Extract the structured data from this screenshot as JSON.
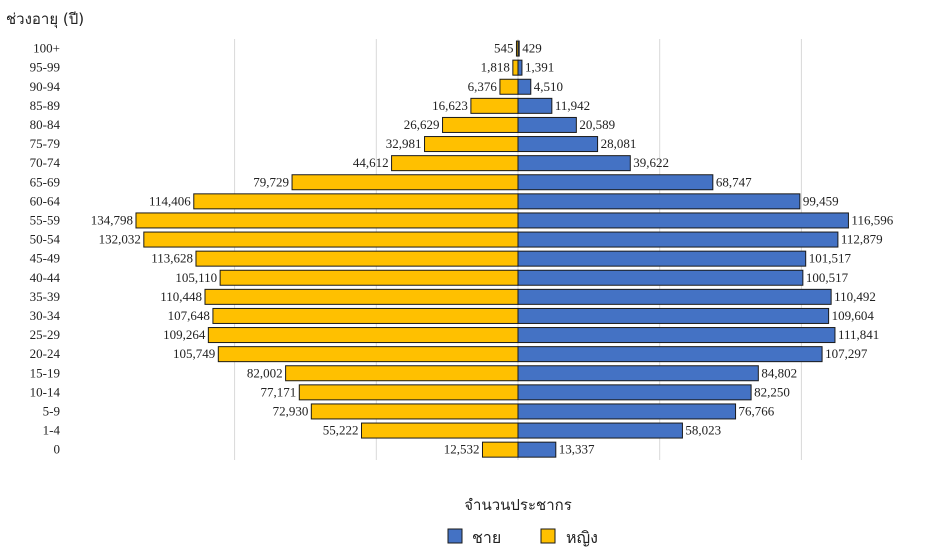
{
  "chart_data": {
    "type": "bar",
    "orientation": "horizontal-pyramid",
    "ylabel": "ช่วงอายุ (ปี)",
    "xlabel": "จำนวนประชากร",
    "categories": [
      "100+",
      "95-99",
      "90-94",
      "85-89",
      "80-84",
      "75-79",
      "70-74",
      "65-69",
      "60-64",
      "55-59",
      "50-54",
      "45-49",
      "40-44",
      "35-39",
      "30-34",
      "25-29",
      "20-24",
      "15-19",
      "10-14",
      "5-9",
      "1-4",
      "0"
    ],
    "series": [
      {
        "name": "หญิง",
        "color": "#FFC000",
        "side": "left",
        "values": [
          545,
          1818,
          6376,
          16623,
          26629,
          32981,
          44612,
          79729,
          114406,
          134798,
          132032,
          113628,
          105110,
          110448,
          107648,
          109264,
          105749,
          82002,
          77171,
          72930,
          55222,
          12532
        ],
        "labels": [
          "545",
          "1,818",
          "6,376",
          "16,623",
          "26,629",
          "32,981",
          "44,612",
          "79,729",
          "114,406",
          "134,798",
          "132,032",
          "113,628",
          "105,110",
          "110,448",
          "107,648",
          "109,264",
          "105,749",
          "82,002",
          "77,171",
          "72,930",
          "55,222",
          "12,532"
        ]
      },
      {
        "name": "ชาย",
        "color": "#4472C4",
        "side": "right",
        "values": [
          429,
          1391,
          4510,
          11942,
          20589,
          28081,
          39622,
          68747,
          99459,
          116596,
          112879,
          101517,
          100517,
          110492,
          109604,
          111841,
          107297,
          84802,
          82250,
          76766,
          58023,
          13337
        ],
        "labels": [
          "429",
          "1,391",
          "4,510",
          "11,942",
          "20,589",
          "28,081",
          "39,622",
          "68,747",
          "99,459",
          "116,596",
          "112,879",
          "101,517",
          "100,517",
          "110,492",
          "109,604",
          "111,841",
          "107,297",
          "84,802",
          "82,250",
          "76,766",
          "58,023",
          "13,337"
        ]
      }
    ],
    "xlim": [
      -140000,
      140000
    ],
    "grid": true,
    "legend_position": "bottom-center"
  },
  "legend": {
    "male": "ชาย",
    "female": "หญิง"
  }
}
